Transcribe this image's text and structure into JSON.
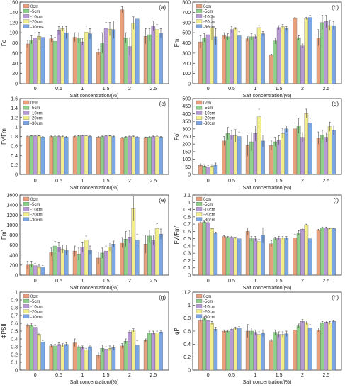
{
  "figure": {
    "series_names": [
      "0cm",
      "-5cm",
      "-10cm",
      "-20cm",
      "-30cm"
    ],
    "colors": {
      "0cm": "#e8a07a",
      "-5cm": "#8fd08a",
      "-10cm": "#b79ad6",
      "-20cm": "#f3ee8c",
      "-30cm": "#7aa6e6"
    }
  },
  "chart_data": [
    {
      "type": "bar",
      "panel": "(a)",
      "categories": [
        "0",
        "0.5",
        "1",
        "1.5",
        "2",
        "2.5"
      ],
      "ylabel": "Fo",
      "xlabel": "Salt concentration/(%)",
      "ylim": [
        0,
        160
      ],
      "yticks": [
        0,
        20,
        40,
        60,
        80,
        100,
        120,
        140,
        160
      ],
      "series": [
        {
          "name": "0cm",
          "values": [
            78,
            88,
            91,
            62,
            145,
            93
          ],
          "errors": [
            7,
            6,
            9,
            6,
            6,
            15
          ]
        },
        {
          "name": "-5cm",
          "values": [
            86,
            83,
            90,
            80,
            90,
            96
          ],
          "errors": [
            8,
            8,
            10,
            20,
            10,
            12
          ]
        },
        {
          "name": "-10cm",
          "values": [
            90,
            104,
            82,
            108,
            73,
            113
          ],
          "errors": [
            10,
            8,
            7,
            12,
            17,
            10
          ]
        },
        {
          "name": "-20cm",
          "values": [
            93,
            108,
            101,
            107,
            119,
            106
          ],
          "errors": [
            8,
            5,
            12,
            13,
            12,
            10
          ]
        },
        {
          "name": "-30cm",
          "values": [
            91,
            100,
            98,
            106,
            127,
            99
          ],
          "errors": [
            20,
            12,
            10,
            17,
            16,
            9
          ]
        }
      ]
    },
    {
      "type": "bar",
      "panel": "(b)",
      "categories": [
        "0",
        "0.5",
        "1",
        "1.5",
        "2",
        "2.5"
      ],
      "ylabel": "Fm",
      "xlabel": "Salt concentration/(%)",
      "ylim": [
        0,
        800
      ],
      "yticks": [
        0,
        100,
        200,
        300,
        400,
        500,
        600,
        700,
        800
      ],
      "series": [
        {
          "name": "0cm",
          "values": [
            410,
            470,
            440,
            280,
            640,
            450
          ],
          "errors": [
            60,
            30,
            20,
            10,
            10,
            80
          ]
        },
        {
          "name": "-5cm",
          "values": [
            450,
            460,
            460,
            420,
            450,
            600
          ],
          "errors": [
            40,
            30,
            30,
            30,
            20,
            70
          ]
        },
        {
          "name": "-10cm",
          "values": [
            480,
            530,
            460,
            550,
            370,
            610
          ],
          "errors": [
            80,
            30,
            20,
            20,
            20,
            60
          ]
        },
        {
          "name": "-20cm",
          "values": [
            550,
            540,
            550,
            560,
            640,
            570
          ],
          "errors": [
            120,
            10,
            20,
            20,
            10,
            50
          ]
        },
        {
          "name": "-30cm",
          "values": [
            460,
            470,
            490,
            540,
            650,
            570
          ],
          "errors": [
            80,
            40,
            20,
            20,
            20,
            40
          ]
        }
      ]
    },
    {
      "type": "bar",
      "panel": "(c)",
      "categories": [
        "0",
        "0.5",
        "1",
        "1.5",
        "2",
        "2.5"
      ],
      "ylabel": "Fv/Fm",
      "xlabel": "Salt concentration/(%)",
      "ylim": [
        0,
        1.6
      ],
      "yticks": [
        0,
        0.2,
        0.4,
        0.6,
        0.8,
        1,
        1.2,
        1.4,
        1.6
      ],
      "series": [
        {
          "name": "0cm",
          "values": [
            0.8,
            0.8,
            0.8,
            0.79,
            0.77,
            0.78
          ],
          "errors": [
            0.01,
            0.01,
            0.01,
            0.01,
            0.01,
            0.01
          ]
        },
        {
          "name": "-5cm",
          "values": [
            0.81,
            0.8,
            0.81,
            0.8,
            0.79,
            0.79
          ],
          "errors": [
            0.01,
            0.01,
            0.01,
            0.01,
            0.01,
            0.01
          ]
        },
        {
          "name": "-10cm",
          "values": [
            0.81,
            0.8,
            0.82,
            0.81,
            0.8,
            0.8
          ],
          "errors": [
            0.01,
            0.01,
            0.01,
            0.01,
            0.01,
            0.01
          ]
        },
        {
          "name": "-20cm",
          "values": [
            0.81,
            0.8,
            0.81,
            0.81,
            0.8,
            0.8
          ],
          "errors": [
            0.01,
            0.01,
            0.01,
            0.01,
            0.01,
            0.01
          ]
        },
        {
          "name": "-30cm",
          "values": [
            0.79,
            0.79,
            0.8,
            0.8,
            0.79,
            0.79
          ],
          "errors": [
            0.01,
            0.01,
            0.01,
            0.01,
            0.01,
            0.01
          ]
        }
      ]
    },
    {
      "type": "bar",
      "panel": "(d)",
      "categories": [
        "0",
        "0.5",
        "1",
        "1.5",
        "2",
        "2.5"
      ],
      "ylabel": "Fo'",
      "xlabel": "Salt concentration/(%)",
      "ylim": [
        0,
        500
      ],
      "yticks": [
        0,
        50,
        100,
        150,
        200,
        250,
        300,
        350,
        400,
        450,
        500
      ],
      "series": [
        {
          "name": "0cm",
          "values": [
            60,
            220,
            190,
            190,
            300,
            240
          ],
          "errors": [
            10,
            30,
            70,
            30,
            40,
            40
          ]
        },
        {
          "name": "-5cm",
          "values": [
            55,
            270,
            215,
            215,
            320,
            260
          ],
          "errors": [
            10,
            40,
            60,
            30,
            50,
            30
          ]
        },
        {
          "name": "-10cm",
          "values": [
            50,
            260,
            270,
            225,
            245,
            245
          ],
          "errors": [
            10,
            30,
            50,
            30,
            30,
            30
          ]
        },
        {
          "name": "-20cm",
          "values": [
            55,
            255,
            380,
            270,
            400,
            315
          ],
          "errors": [
            10,
            40,
            50,
            30,
            30,
            30
          ]
        },
        {
          "name": "-30cm",
          "values": [
            65,
            250,
            220,
            300,
            340,
            290
          ],
          "errors": [
            10,
            30,
            40,
            20,
            30,
            30
          ]
        }
      ]
    },
    {
      "type": "bar",
      "panel": "(e)",
      "categories": [
        "0",
        "0.5",
        "1",
        "1.5",
        "2",
        "2.5"
      ],
      "ylabel": "Fm'",
      "xlabel": "Salt concentration/(%)",
      "ylim": [
        0,
        1600
      ],
      "yticks": [
        0,
        200,
        400,
        600,
        800,
        1000,
        1200,
        1400,
        1600
      ],
      "series": [
        {
          "name": "0cm",
          "values": [
            200,
            460,
            480,
            340,
            650,
            620
          ],
          "errors": [
            80,
            80,
            100,
            120,
            100,
            180
          ]
        },
        {
          "name": "-5cm",
          "values": [
            220,
            580,
            420,
            440,
            720,
            780
          ],
          "errors": [
            60,
            90,
            120,
            100,
            150,
            120
          ]
        },
        {
          "name": "-10cm",
          "values": [
            190,
            560,
            560,
            480,
            760,
            700
          ],
          "errors": [
            40,
            100,
            100,
            100,
            120,
            100
          ]
        },
        {
          "name": "-20cm",
          "values": [
            170,
            520,
            700,
            560,
            1330,
            930
          ],
          "errors": [
            30,
            80,
            80,
            80,
            250,
            100
          ]
        },
        {
          "name": "-30cm",
          "values": [
            160,
            500,
            500,
            620,
            700,
            820
          ],
          "errors": [
            30,
            100,
            80,
            60,
            120,
            100
          ]
        }
      ]
    },
    {
      "type": "bar",
      "panel": "(f)",
      "categories": [
        "0",
        "0.5",
        "1",
        "1.5",
        "2",
        "2.5"
      ],
      "ylabel": "Fv'/Fm'",
      "xlabel": "Salt concentration/(%)",
      "ylim": [
        0,
        1.1
      ],
      "yticks": [
        0,
        0.1,
        0.2,
        0.3,
        0.4,
        0.5,
        0.6,
        0.7,
        0.8,
        0.9,
        1,
        1.1
      ],
      "series": [
        {
          "name": "0cm",
          "values": [
            0.72,
            0.53,
            0.6,
            0.43,
            0.51,
            0.62
          ],
          "errors": [
            0.01,
            0.01,
            0.05,
            0.04,
            0.05,
            0.01
          ]
        },
        {
          "name": "-5cm",
          "values": [
            0.73,
            0.52,
            0.5,
            0.5,
            0.58,
            0.65
          ],
          "errors": [
            0.01,
            0.01,
            0.03,
            0.02,
            0.03,
            0.01
          ]
        },
        {
          "name": "-10cm",
          "values": [
            0.72,
            0.52,
            0.5,
            0.51,
            0.63,
            0.65
          ],
          "errors": [
            0.01,
            0.01,
            0.03,
            0.02,
            0.02,
            0.01
          ]
        },
        {
          "name": "-20cm",
          "values": [
            0.64,
            0.51,
            0.46,
            0.51,
            0.69,
            0.64
          ],
          "errors": [
            0.01,
            0.01,
            0.03,
            0.02,
            0.01,
            0.01
          ]
        },
        {
          "name": "-30cm",
          "values": [
            0.58,
            0.5,
            0.55,
            0.51,
            0.5,
            0.64
          ],
          "errors": [
            0.01,
            0.01,
            0.1,
            0.02,
            0.05,
            0.01
          ]
        }
      ]
    },
    {
      "type": "bar",
      "panel": "(g)",
      "categories": [
        "0",
        "0.5",
        "1",
        "1.5",
        "2",
        "2.5"
      ],
      "ylabel": "ΦPSII",
      "xlabel": "Salt concentration/(%)",
      "ylim": [
        0,
        1
      ],
      "yticks": [
        0,
        0.1,
        0.2,
        0.3,
        0.4,
        0.5,
        0.6,
        0.7,
        0.8,
        0.9,
        1
      ],
      "series": [
        {
          "name": "0cm",
          "values": [
            0.57,
            0.31,
            0.35,
            0.19,
            0.31,
            0.38
          ],
          "errors": [
            0.02,
            0.02,
            0.05,
            0.04,
            0.03,
            0.02
          ]
        },
        {
          "name": "-5cm",
          "values": [
            0.58,
            0.31,
            0.3,
            0.28,
            0.37,
            0.48
          ],
          "errors": [
            0.02,
            0.02,
            0.02,
            0.04,
            0.03,
            0.02
          ]
        },
        {
          "name": "-10cm",
          "values": [
            0.55,
            0.33,
            0.29,
            0.27,
            0.49,
            0.48
          ],
          "errors": [
            0.02,
            0.02,
            0.02,
            0.03,
            0.02,
            0.02
          ]
        },
        {
          "name": "-20cm",
          "values": [
            0.46,
            0.32,
            0.26,
            0.28,
            0.51,
            0.48
          ],
          "errors": [
            0.02,
            0.02,
            0.02,
            0.03,
            0.02,
            0.02
          ]
        },
        {
          "name": "-30cm",
          "values": [
            0.36,
            0.33,
            0.3,
            0.29,
            0.32,
            0.49
          ],
          "errors": [
            0.02,
            0.02,
            0.02,
            0.03,
            0.06,
            0.02
          ]
        }
      ]
    },
    {
      "type": "bar",
      "panel": "(h)",
      "categories": [
        "0",
        "0.5",
        "1",
        "1.5",
        "2",
        "2.5"
      ],
      "ylabel": "qP",
      "xlabel": "Salt concentration/(%)",
      "ylim": [
        0,
        1.2
      ],
      "yticks": [
        0,
        0.2,
        0.4,
        0.6,
        0.8,
        1,
        1.2
      ],
      "series": [
        {
          "name": "0cm",
          "values": [
            0.77,
            0.6,
            0.6,
            0.45,
            0.62,
            0.62
          ],
          "errors": [
            0.03,
            0.02,
            0.1,
            0.02,
            0.03,
            0.03
          ]
        },
        {
          "name": "-5cm",
          "values": [
            0.8,
            0.6,
            0.6,
            0.58,
            0.68,
            0.73
          ],
          "errors": [
            0.03,
            0.02,
            0.05,
            0.04,
            0.03,
            0.02
          ]
        },
        {
          "name": "-10cm",
          "values": [
            0.77,
            0.63,
            0.58,
            0.55,
            0.75,
            0.74
          ],
          "errors": [
            0.03,
            0.02,
            0.04,
            0.04,
            0.03,
            0.02
          ]
        },
        {
          "name": "-20cm",
          "values": [
            0.72,
            0.64,
            0.55,
            0.55,
            0.73,
            0.73
          ],
          "errors": [
            0.03,
            0.02,
            0.04,
            0.04,
            0.03,
            0.02
          ]
        },
        {
          "name": "-30cm",
          "values": [
            0.63,
            0.65,
            0.57,
            0.56,
            0.65,
            0.75
          ],
          "errors": [
            0.03,
            0.02,
            0.05,
            0.04,
            0.05,
            0.02
          ]
        }
      ]
    }
  ]
}
